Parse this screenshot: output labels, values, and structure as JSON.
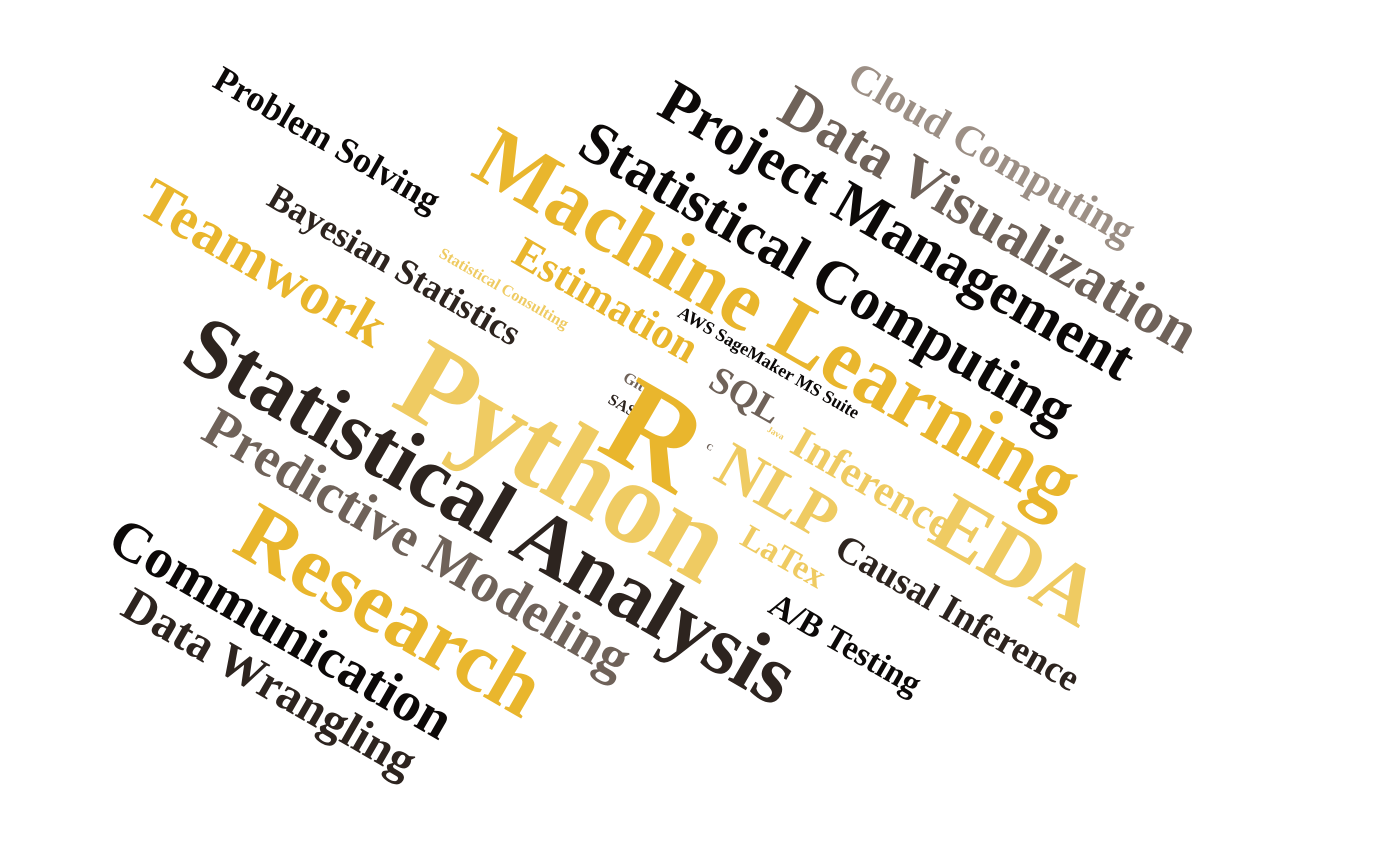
{
  "word_cloud": {
    "colors": {
      "black": "#0c0908",
      "dark_brown": "#2d241f",
      "brown": "#6f6259",
      "gold": "#e9b62d",
      "light_gold": "#efcb62",
      "light_tan": "#9c8f85"
    },
    "words": {
      "cloud_computing": "Cloud Computing",
      "data_visualization": "Data Visualization",
      "project_management": "Project Management",
      "statistical_computing": "Statistical Computing",
      "machine_learning": "Machine Learning",
      "problem_solving": "Problem Solving",
      "bayesian_statistics": "Bayesian Statistics",
      "teamwork": "Teamwork",
      "estimation": "Estimation",
      "statistical_consulting": "Statistical Consulting",
      "aws_sagemaker": "AWS SageMaker MS Suite",
      "git": "Git",
      "sas": "SAS",
      "sql": "SQL",
      "java": "Java",
      "c": "C",
      "inference": "Inference",
      "nlp": "NLP",
      "eda": "EDA",
      "statistical_analysis": "Statistical Analysis",
      "python": "Python",
      "r": "R",
      "predictive_modeling": "Predictive Modeling",
      "research": "Research",
      "latex": "LaTex",
      "causal_inference": "Causal Inference",
      "ab_testing": "A/B Testing",
      "communication": "Communication",
      "data_wrangling": "Data Wrangling"
    }
  }
}
